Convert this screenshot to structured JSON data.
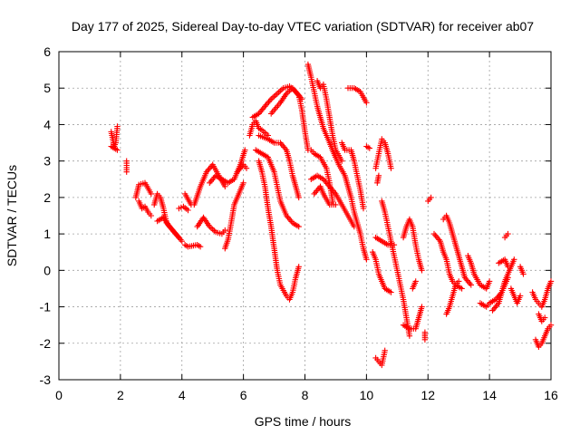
{
  "chart_data": {
    "type": "scatter",
    "title": "Day 177 of 2025, Sidereal Day-to-day VTEC variation (SDTVAR) for receiver ab07",
    "xlabel": "GPS time / hours",
    "ylabel": "SDTVAR / TECUs",
    "xlim": [
      0,
      16
    ],
    "ylim": [
      -3,
      6
    ],
    "xticks": [
      0,
      2,
      4,
      6,
      8,
      10,
      12,
      14,
      16
    ],
    "yticks": [
      -3,
      -2,
      -1,
      0,
      1,
      2,
      3,
      4,
      5,
      6
    ],
    "grid": true,
    "marker": "+",
    "color": "#ff0000",
    "traces": [
      [
        [
          1.7,
          3.8
        ],
        [
          1.75,
          3.6
        ],
        [
          1.8,
          3.4
        ],
        [
          1.85,
          3.5
        ],
        [
          1.9,
          3.95
        ]
      ],
      [
        [
          1.7,
          3.4
        ],
        [
          1.8,
          3.35
        ],
        [
          1.9,
          3.3
        ]
      ],
      [
        [
          2.2,
          3.0
        ],
        [
          2.2,
          2.7
        ]
      ],
      [
        [
          2.5,
          2.0
        ],
        [
          2.6,
          2.35
        ],
        [
          2.8,
          2.4
        ],
        [
          2.9,
          2.25
        ],
        [
          3.0,
          2.1
        ]
      ],
      [
        [
          2.6,
          1.9
        ],
        [
          2.7,
          1.7
        ],
        [
          2.8,
          1.75
        ],
        [
          2.9,
          1.6
        ],
        [
          3.0,
          1.5
        ]
      ],
      [
        [
          3.1,
          1.8
        ],
        [
          3.2,
          2.1
        ],
        [
          3.3,
          2.0
        ],
        [
          3.4,
          1.7
        ],
        [
          3.5,
          1.3
        ],
        [
          3.7,
          1.1
        ],
        [
          3.9,
          0.9
        ]
      ],
      [
        [
          3.2,
          1.35
        ],
        [
          3.4,
          1.45
        ],
        [
          3.6,
          1.2
        ],
        [
          3.8,
          1.0
        ],
        [
          4.0,
          0.8
        ]
      ],
      [
        [
          4.1,
          2.1
        ],
        [
          4.3,
          1.8
        ]
      ],
      [
        [
          3.9,
          1.7
        ],
        [
          4.05,
          1.75
        ],
        [
          4.2,
          1.65
        ]
      ],
      [
        [
          4.1,
          0.7
        ],
        [
          4.2,
          0.65
        ],
        [
          4.5,
          0.7
        ],
        [
          4.6,
          0.65
        ]
      ],
      [
        [
          4.4,
          1.8
        ],
        [
          4.6,
          2.3
        ],
        [
          4.8,
          2.7
        ],
        [
          5.0,
          2.9
        ],
        [
          5.2,
          2.6
        ],
        [
          5.4,
          2.3
        ]
      ],
      [
        [
          4.5,
          1.2
        ],
        [
          4.7,
          1.45
        ],
        [
          4.9,
          1.2
        ],
        [
          5.1,
          1.05
        ],
        [
          5.3,
          1.0
        ],
        [
          5.4,
          1.1
        ]
      ],
      [
        [
          4.9,
          2.4
        ],
        [
          5.1,
          2.6
        ],
        [
          5.3,
          2.5
        ],
        [
          5.5,
          2.4
        ],
        [
          5.7,
          2.5
        ],
        [
          5.9,
          2.9
        ],
        [
          6.05,
          3.3
        ]
      ],
      [
        [
          5.4,
          0.6
        ],
        [
          5.5,
          0.85
        ],
        [
          5.6,
          1.3
        ],
        [
          5.7,
          1.8
        ],
        [
          5.9,
          2.2
        ],
        [
          6.0,
          2.4
        ]
      ],
      [
        [
          5.8,
          2.7
        ],
        [
          6.0,
          2.9
        ],
        [
          6.1,
          2.8
        ]
      ],
      [
        [
          6.2,
          3.7
        ],
        [
          6.3,
          4.0
        ],
        [
          6.4,
          4.1
        ],
        [
          6.5,
          3.9
        ],
        [
          6.6,
          3.85
        ],
        [
          6.8,
          3.7
        ]
      ],
      [
        [
          6.3,
          4.2
        ],
        [
          6.5,
          4.3
        ],
        [
          6.7,
          4.5
        ],
        [
          6.9,
          4.7
        ],
        [
          7.1,
          4.85
        ],
        [
          7.3,
          5.0
        ],
        [
          7.5,
          5.05
        ],
        [
          7.7,
          4.9
        ],
        [
          7.9,
          4.7
        ]
      ],
      [
        [
          6.5,
          3.0
        ],
        [
          6.6,
          2.7
        ],
        [
          6.7,
          2.3
        ],
        [
          6.8,
          1.7
        ],
        [
          6.9,
          1.2
        ],
        [
          7.0,
          0.6
        ],
        [
          7.1,
          0.0
        ],
        [
          7.2,
          -0.4
        ],
        [
          7.4,
          -0.7
        ],
        [
          7.5,
          -0.8
        ],
        [
          7.6,
          -0.6
        ],
        [
          7.7,
          -0.2
        ],
        [
          7.8,
          0.1
        ]
      ],
      [
        [
          6.4,
          3.3
        ],
        [
          6.6,
          3.2
        ],
        [
          6.8,
          3.1
        ],
        [
          7.0,
          2.7
        ],
        [
          7.1,
          2.3
        ],
        [
          7.2,
          1.9
        ],
        [
          7.4,
          1.5
        ],
        [
          7.6,
          1.3
        ],
        [
          7.8,
          1.2
        ]
      ],
      [
        [
          6.5,
          3.7
        ],
        [
          6.8,
          3.6
        ],
        [
          7.0,
          3.5
        ],
        [
          7.2,
          3.5
        ],
        [
          7.4,
          3.3
        ],
        [
          7.5,
          3.0
        ],
        [
          7.6,
          2.6
        ],
        [
          7.7,
          2.3
        ],
        [
          7.8,
          2.0
        ]
      ],
      [
        [
          6.9,
          4.3
        ],
        [
          7.2,
          4.6
        ],
        [
          7.4,
          4.85
        ],
        [
          7.6,
          5.0
        ],
        [
          7.8,
          4.8
        ],
        [
          7.9,
          4.4
        ],
        [
          8.0,
          3.8
        ],
        [
          8.1,
          3.3
        ]
      ],
      [
        [
          8.1,
          5.65
        ],
        [
          8.2,
          5.3
        ],
        [
          8.3,
          4.9
        ],
        [
          8.4,
          4.5
        ],
        [
          8.5,
          4.2
        ],
        [
          8.6,
          3.9
        ],
        [
          8.8,
          3.5
        ],
        [
          9.0,
          3.1
        ]
      ],
      [
        [
          8.4,
          5.2
        ],
        [
          8.5,
          5.0
        ],
        [
          8.6,
          5.1
        ],
        [
          8.7,
          4.7
        ],
        [
          8.8,
          4.2
        ],
        [
          8.9,
          3.7
        ],
        [
          9.0,
          3.3
        ],
        [
          9.2,
          3.0
        ]
      ],
      [
        [
          8.2,
          3.3
        ],
        [
          8.3,
          3.2
        ],
        [
          8.5,
          3.1
        ],
        [
          8.7,
          2.8
        ],
        [
          8.8,
          2.4
        ],
        [
          8.9,
          1.9
        ]
      ],
      [
        [
          8.2,
          2.5
        ],
        [
          8.4,
          2.6
        ],
        [
          8.6,
          2.5
        ],
        [
          8.8,
          2.3
        ],
        [
          9.0,
          2.1
        ],
        [
          9.2,
          1.8
        ],
        [
          9.4,
          1.5
        ],
        [
          9.6,
          1.2
        ]
      ],
      [
        [
          8.3,
          2.1
        ],
        [
          8.5,
          2.3
        ],
        [
          8.6,
          2.1
        ],
        [
          8.8,
          1.8
        ],
        [
          9.0,
          1.8
        ]
      ],
      [
        [
          8.9,
          3.3
        ],
        [
          9.0,
          3.1
        ],
        [
          9.1,
          2.9
        ],
        [
          9.3,
          2.6
        ],
        [
          9.4,
          2.3
        ],
        [
          9.5,
          2.0
        ],
        [
          9.6,
          1.6
        ],
        [
          9.7,
          1.3
        ],
        [
          9.8,
          1.0
        ],
        [
          9.9,
          0.6
        ],
        [
          10.0,
          0.3
        ]
      ],
      [
        [
          9.2,
          3.5
        ],
        [
          9.3,
          3.3
        ],
        [
          9.5,
          3.3
        ],
        [
          9.6,
          3.0
        ],
        [
          9.7,
          2.6
        ],
        [
          9.8,
          2.2
        ],
        [
          9.9,
          1.7
        ]
      ],
      [
        [
          9.4,
          5.0
        ],
        [
          9.6,
          5.0
        ],
        [
          9.8,
          4.9
        ],
        [
          10.0,
          4.6
        ]
      ],
      [
        [
          10.0,
          3.4
        ],
        [
          10.1,
          3.35
        ]
      ],
      [
        [
          10.3,
          2.8
        ],
        [
          10.4,
          3.2
        ],
        [
          10.5,
          3.6
        ],
        [
          10.6,
          3.5
        ],
        [
          10.7,
          3.2
        ],
        [
          10.8,
          2.8
        ]
      ],
      [
        [
          10.35,
          2.4
        ],
        [
          10.4,
          2.6
        ]
      ],
      [
        [
          10.2,
          0.5
        ],
        [
          10.3,
          0.3
        ],
        [
          10.4,
          -0.1
        ],
        [
          10.5,
          -0.3
        ],
        [
          10.6,
          -0.5
        ],
        [
          10.8,
          -0.6
        ]
      ],
      [
        [
          10.3,
          -2.4
        ],
        [
          10.4,
          -2.5
        ],
        [
          10.5,
          -2.6
        ],
        [
          10.6,
          -2.2
        ]
      ],
      [
        [
          10.5,
          1.9
        ],
        [
          10.6,
          1.6
        ],
        [
          10.7,
          1.2
        ],
        [
          10.8,
          0.8
        ],
        [
          10.9,
          0.4
        ],
        [
          11.0,
          0.0
        ],
        [
          11.1,
          -0.4
        ],
        [
          11.2,
          -0.8
        ],
        [
          11.3,
          -1.3
        ],
        [
          11.4,
          -1.8
        ]
      ],
      [
        [
          10.3,
          0.9
        ],
        [
          10.5,
          0.8
        ],
        [
          10.7,
          0.7
        ],
        [
          10.9,
          0.7
        ]
      ],
      [
        [
          11.2,
          -1.5
        ],
        [
          11.4,
          -1.6
        ],
        [
          11.6,
          -1.6
        ],
        [
          11.7,
          -1.3
        ],
        [
          11.8,
          -1.0
        ]
      ],
      [
        [
          11.2,
          0.9
        ],
        [
          11.3,
          1.2
        ],
        [
          11.4,
          1.4
        ],
        [
          11.5,
          1.2
        ],
        [
          11.6,
          0.7
        ],
        [
          11.7,
          0.3
        ],
        [
          11.8,
          0.0
        ]
      ],
      [
        [
          11.5,
          -0.5
        ],
        [
          11.6,
          -0.3
        ]
      ],
      [
        [
          11.9,
          -1.7
        ],
        [
          11.9,
          -1.9
        ]
      ],
      [
        [
          12.0,
          1.9
        ],
        [
          12.1,
          2.0
        ]
      ],
      [
        [
          12.2,
          1.0
        ],
        [
          12.4,
          0.8
        ],
        [
          12.5,
          0.5
        ],
        [
          12.6,
          0.3
        ],
        [
          12.7,
          -0.1
        ],
        [
          12.8,
          -0.3
        ],
        [
          12.9,
          -0.4
        ],
        [
          13.1,
          -0.5
        ]
      ],
      [
        [
          12.5,
          1.4
        ],
        [
          12.6,
          1.5
        ],
        [
          12.7,
          1.3
        ],
        [
          12.8,
          1.0
        ],
        [
          12.9,
          0.7
        ],
        [
          13.0,
          0.4
        ],
        [
          13.1,
          0.1
        ],
        [
          13.2,
          -0.2
        ],
        [
          13.4,
          -0.4
        ]
      ],
      [
        [
          12.6,
          -1.2
        ],
        [
          12.7,
          -1.0
        ],
        [
          12.8,
          -0.7
        ],
        [
          12.9,
          -0.4
        ],
        [
          13.0,
          -0.3
        ]
      ],
      [
        [
          13.3,
          0.4
        ],
        [
          13.4,
          0.2
        ],
        [
          13.5,
          -0.1
        ],
        [
          13.7,
          -0.4
        ],
        [
          13.9,
          -0.5
        ],
        [
          14.0,
          -0.3
        ]
      ],
      [
        [
          13.7,
          -0.9
        ],
        [
          13.9,
          -1.0
        ],
        [
          14.0,
          -0.9
        ],
        [
          14.2,
          -0.8
        ],
        [
          14.4,
          -0.6
        ],
        [
          14.5,
          -0.4
        ],
        [
          14.6,
          -0.2
        ]
      ],
      [
        [
          14.1,
          -1.1
        ],
        [
          14.3,
          -0.9
        ],
        [
          14.4,
          -0.6
        ],
        [
          14.5,
          -0.3
        ],
        [
          14.6,
          -0.1
        ],
        [
          14.7,
          0.1
        ],
        [
          14.8,
          0.3
        ]
      ],
      [
        [
          14.3,
          0.2
        ],
        [
          14.5,
          0.3
        ],
        [
          14.6,
          0.1
        ]
      ],
      [
        [
          14.5,
          0.9
        ],
        [
          14.6,
          1.0
        ]
      ],
      [
        [
          14.7,
          -0.5
        ],
        [
          14.8,
          -0.7
        ],
        [
          14.9,
          -0.9
        ],
        [
          15.0,
          -0.7
        ]
      ],
      [
        [
          15.0,
          0.1
        ],
        [
          15.1,
          -0.1
        ]
      ],
      [
        [
          15.4,
          -0.6
        ],
        [
          15.5,
          -0.8
        ],
        [
          15.6,
          -0.9
        ],
        [
          15.7,
          -1.0
        ],
        [
          15.8,
          -0.8
        ],
        [
          15.9,
          -0.5
        ],
        [
          16.0,
          -0.3
        ]
      ],
      [
        [
          15.5,
          -1.9
        ],
        [
          15.6,
          -2.1
        ],
        [
          15.7,
          -2.0
        ],
        [
          15.8,
          -1.8
        ],
        [
          15.9,
          -1.6
        ],
        [
          16.0,
          -1.5
        ]
      ],
      [
        [
          15.6,
          -1.2
        ],
        [
          15.7,
          -1.4
        ],
        [
          15.8,
          -1.3
        ]
      ]
    ]
  }
}
